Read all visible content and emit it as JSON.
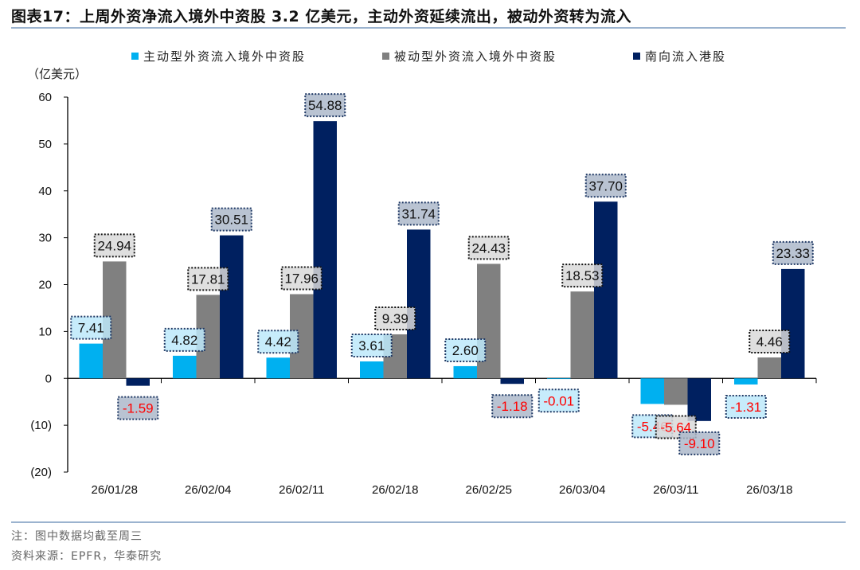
{
  "title": "图表17：上周外资净流入境外中资股 3.2 亿美元，主动外资延续流出，被动外资转为流入",
  "notes": [
    "注：图中数据均截至周三",
    "资料来源：EPFR，华泰研究"
  ],
  "chart_data": {
    "type": "bar",
    "ylabel": "（亿美元）",
    "ylim": [
      -20,
      60
    ],
    "yticks": [
      60,
      50,
      40,
      30,
      20,
      10,
      0,
      -10,
      -20
    ],
    "ytick_labels": [
      "60",
      "50",
      "40",
      "30",
      "20",
      "10",
      "0",
      "(10)",
      "(20)"
    ],
    "grid": false,
    "legend_placement": "top",
    "categories": [
      "26/01/28",
      "26/02/04",
      "26/02/11",
      "26/02/18",
      "26/02/25",
      "26/03/04",
      "26/03/11",
      "26/03/18"
    ],
    "series": [
      {
        "name": "主动型外资流入境外中资股",
        "color": "#00B0F0",
        "label_bg": "#BDE9FA",
        "values": [
          7.41,
          4.82,
          4.42,
          3.61,
          2.6,
          -0.01,
          -5.46,
          -1.31
        ]
      },
      {
        "name": "被动型外资流入境外中资股",
        "color": "#808080",
        "label_bg": "#D9D9D9",
        "values": [
          24.94,
          17.81,
          17.96,
          9.39,
          24.43,
          18.53,
          -5.64,
          4.46
        ]
      },
      {
        "name": "南向流入港股",
        "color": "#002060",
        "label_bg": "#ADB9CA",
        "values": [
          -1.59,
          30.51,
          54.88,
          31.74,
          -1.18,
          37.7,
          -9.1,
          23.33
        ]
      }
    ],
    "negative_label_color": "#FF0000"
  }
}
